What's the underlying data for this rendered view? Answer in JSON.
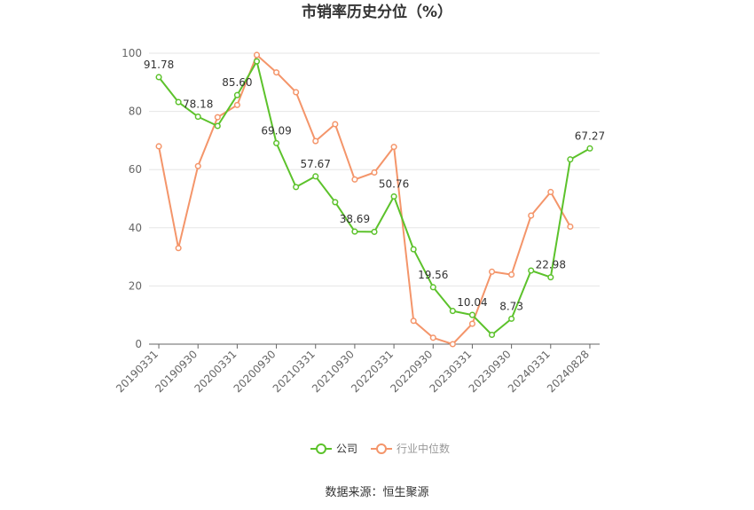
{
  "chart_data": {
    "type": "line",
    "title": "市销率历史分位（%）",
    "ylim": [
      0,
      100
    ],
    "yticks": [
      "0",
      "20",
      "40",
      "60",
      "80",
      "100"
    ],
    "grid": true,
    "legend_position": "bottom",
    "x": [
      "20190331",
      "20190630",
      "20190930",
      "20191231",
      "20200331",
      "20200630",
      "20200930",
      "20201231",
      "20210331",
      "20210630",
      "20210930",
      "20211231",
      "20220331",
      "20220630",
      "20220930",
      "20221231",
      "20230331",
      "20230630",
      "20230930",
      "20231231",
      "20240331",
      "20240630",
      "20240828"
    ],
    "xtick_labels": [
      "20190331",
      "20190930",
      "20200331",
      "20200930",
      "20210331",
      "20210930",
      "20220331",
      "20220930",
      "20230331",
      "20230930",
      "20240331",
      "20240828"
    ],
    "series": [
      {
        "name": "公司",
        "color": "#5cc22b",
        "values": [
          91.78,
          83.2,
          78.18,
          75.0,
          85.6,
          97.2,
          69.09,
          54.0,
          57.67,
          48.8,
          38.69,
          38.6,
          50.76,
          32.6,
          19.56,
          11.4,
          10.04,
          3.2,
          8.73,
          25.3,
          22.98,
          63.5,
          67.27
        ],
        "labels": {
          "0": "91.78",
          "2": "78.18",
          "4": "85.60",
          "6": "69.09",
          "8": "57.67",
          "10": "38.69",
          "12": "50.76",
          "14": "19.56",
          "16": "10.04",
          "18": "8.73",
          "20": "22.98",
          "22": "67.27"
        }
      },
      {
        "name": "行业中位数",
        "color": "#f4956a",
        "values": [
          68.0,
          33.0,
          61.2,
          78.0,
          82.2,
          99.4,
          93.4,
          86.6,
          69.8,
          75.6,
          56.6,
          59.0,
          67.8,
          8.0,
          2.2,
          0.0,
          7.0,
          24.9,
          23.9,
          44.2,
          52.3,
          40.4,
          null
        ]
      }
    ]
  },
  "source_label": "数据来源：恒生聚源"
}
